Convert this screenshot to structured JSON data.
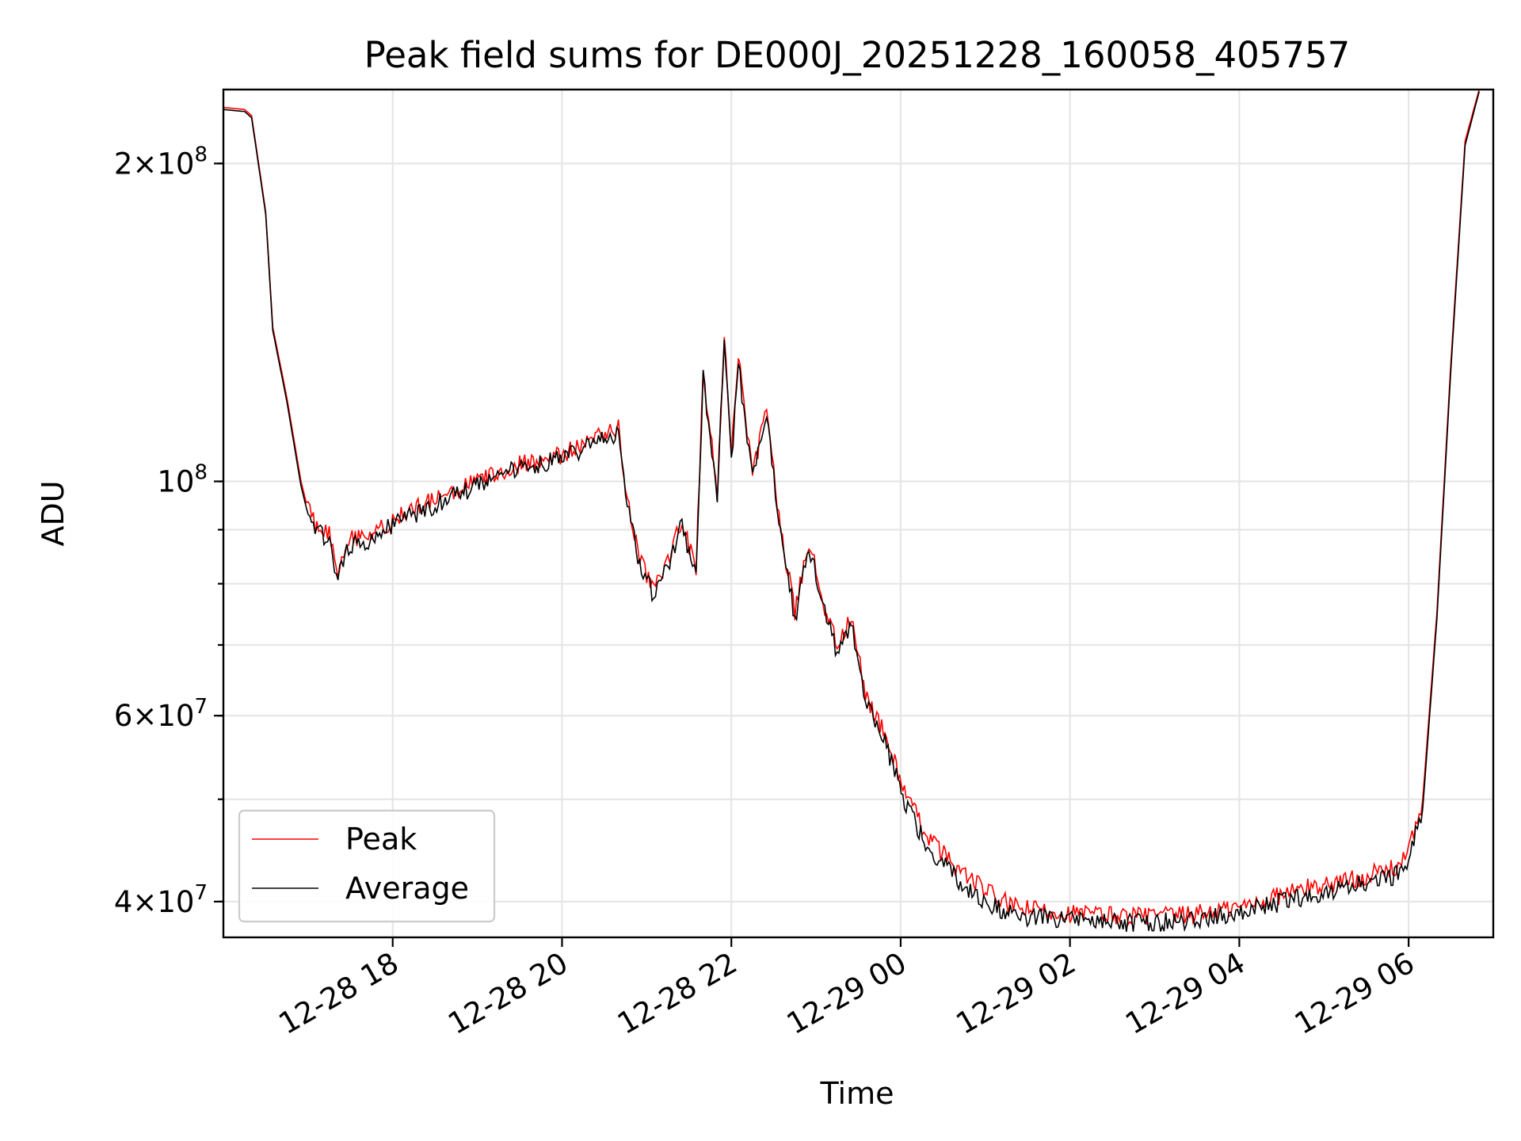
{
  "chart_data": {
    "type": "line",
    "title": "Peak field sums for DE000J_20251228_160058_405757",
    "xlabel": "Time",
    "ylabel": "ADU",
    "x_start": "2025-12-28 16:00",
    "x_end": "2025-12-29 07:00",
    "x_ticks": [
      "12-28 18",
      "12-28 20",
      "12-28 22",
      "12-29 00",
      "12-29 02",
      "12-29 04",
      "12-29 06"
    ],
    "y_scale": "log",
    "ylim": [
      37000000,
      235000000
    ],
    "y_ticks": [
      {
        "value": 200000000,
        "mantissa": "2",
        "exp": "8"
      },
      {
        "value": 100000000,
        "mantissa": "",
        "exp": "8"
      },
      {
        "value": 60000000,
        "mantissa": "6",
        "exp": "7"
      },
      {
        "value": 40000000,
        "mantissa": "4",
        "exp": "7"
      }
    ],
    "grid": true,
    "legend": {
      "position": "lower-left"
    },
    "series": [
      {
        "name": "Peak",
        "color": "#ff0000",
        "points": [
          [
            "2025-12-28 16:00",
            226000000
          ],
          [
            "2025-12-28 16:15",
            225000000
          ],
          [
            "2025-12-28 16:20",
            222000000
          ],
          [
            "2025-12-28 16:30",
            180000000
          ],
          [
            "2025-12-28 16:35",
            140000000
          ],
          [
            "2025-12-28 16:45",
            120000000
          ],
          [
            "2025-12-28 16:55",
            100000000
          ],
          [
            "2025-12-28 17:00",
            94000000
          ],
          [
            "2025-12-28 17:05",
            91000000
          ],
          [
            "2025-12-28 17:15",
            89000000
          ],
          [
            "2025-12-28 17:20",
            82000000
          ],
          [
            "2025-12-28 17:30",
            88000000
          ],
          [
            "2025-12-28 17:45",
            89000000
          ],
          [
            "2025-12-28 18:00",
            92000000
          ],
          [
            "2025-12-28 18:30",
            96000000
          ],
          [
            "2025-12-28 19:00",
            100000000
          ],
          [
            "2025-12-28 19:30",
            104000000
          ],
          [
            "2025-12-28 20:00",
            106000000
          ],
          [
            "2025-12-28 20:20",
            109000000
          ],
          [
            "2025-12-28 20:40",
            113000000
          ],
          [
            "2025-12-28 20:45",
            98000000
          ],
          [
            "2025-12-28 20:55",
            84000000
          ],
          [
            "2025-12-28 21:05",
            79000000
          ],
          [
            "2025-12-28 21:15",
            84000000
          ],
          [
            "2025-12-28 21:25",
            92000000
          ],
          [
            "2025-12-28 21:35",
            82000000
          ],
          [
            "2025-12-28 21:40",
            128000000
          ],
          [
            "2025-12-28 21:50",
            97000000
          ],
          [
            "2025-12-28 21:55",
            139000000
          ],
          [
            "2025-12-28 22:00",
            105000000
          ],
          [
            "2025-12-28 22:05",
            131000000
          ],
          [
            "2025-12-28 22:15",
            101000000
          ],
          [
            "2025-12-28 22:25",
            117000000
          ],
          [
            "2025-12-28 22:35",
            90000000
          ],
          [
            "2025-12-28 22:45",
            75000000
          ],
          [
            "2025-12-28 22:55",
            88000000
          ],
          [
            "2025-12-28 23:05",
            77000000
          ],
          [
            "2025-12-28 23:15",
            70000000
          ],
          [
            "2025-12-28 23:25",
            74000000
          ],
          [
            "2025-12-28 23:35",
            63000000
          ],
          [
            "2025-12-28 23:50",
            57000000
          ],
          [
            "2025-12-29 00:05",
            50000000
          ],
          [
            "2025-12-29 00:20",
            46000000
          ],
          [
            "2025-12-29 00:40",
            43000000
          ],
          [
            "2025-12-29 01:00",
            41000000
          ],
          [
            "2025-12-29 01:20",
            39500000
          ],
          [
            "2025-12-29 02:00",
            39000000
          ],
          [
            "2025-12-29 02:40",
            38800000
          ],
          [
            "2025-12-29 03:20",
            38800000
          ],
          [
            "2025-12-29 04:00",
            39500000
          ],
          [
            "2025-12-29 04:40",
            41000000
          ],
          [
            "2025-12-29 05:20",
            42000000
          ],
          [
            "2025-12-29 05:50",
            43000000
          ],
          [
            "2025-12-29 06:00",
            44500000
          ],
          [
            "2025-12-29 06:10",
            50000000
          ],
          [
            "2025-12-29 06:20",
            75000000
          ],
          [
            "2025-12-29 06:30",
            130000000
          ],
          [
            "2025-12-29 06:40",
            210000000
          ],
          [
            "2025-12-29 06:50",
            235000000
          ]
        ]
      },
      {
        "name": "Average",
        "color": "#000000",
        "points": [
          [
            "2025-12-28 16:00",
            225000000
          ],
          [
            "2025-12-28 16:15",
            224000000
          ],
          [
            "2025-12-28 16:20",
            221000000
          ],
          [
            "2025-12-28 16:30",
            179000000
          ],
          [
            "2025-12-28 16:35",
            139000000
          ],
          [
            "2025-12-28 16:45",
            119000000
          ],
          [
            "2025-12-28 16:55",
            99000000
          ],
          [
            "2025-12-28 17:00",
            93000000
          ],
          [
            "2025-12-28 17:05",
            90000000
          ],
          [
            "2025-12-28 17:15",
            88000000
          ],
          [
            "2025-12-28 17:20",
            81000000
          ],
          [
            "2025-12-28 17:30",
            87000000
          ],
          [
            "2025-12-28 17:45",
            88000000
          ],
          [
            "2025-12-28 18:00",
            91000000
          ],
          [
            "2025-12-28 18:30",
            95000000
          ],
          [
            "2025-12-28 19:00",
            99000000
          ],
          [
            "2025-12-28 19:30",
            103000000
          ],
          [
            "2025-12-28 20:00",
            105000000
          ],
          [
            "2025-12-28 20:20",
            108000000
          ],
          [
            "2025-12-28 20:40",
            111000000
          ],
          [
            "2025-12-28 20:45",
            97000000
          ],
          [
            "2025-12-28 20:55",
            83000000
          ],
          [
            "2025-12-28 21:05",
            78000000
          ],
          [
            "2025-12-28 21:15",
            83000000
          ],
          [
            "2025-12-28 21:25",
            91000000
          ],
          [
            "2025-12-28 21:35",
            81000000
          ],
          [
            "2025-12-28 21:40",
            126000000
          ],
          [
            "2025-12-28 21:50",
            96000000
          ],
          [
            "2025-12-28 21:55",
            137000000
          ],
          [
            "2025-12-28 22:00",
            104000000
          ],
          [
            "2025-12-28 22:05",
            129000000
          ],
          [
            "2025-12-28 22:15",
            100000000
          ],
          [
            "2025-12-28 22:25",
            115000000
          ],
          [
            "2025-12-28 22:35",
            89000000
          ],
          [
            "2025-12-28 22:45",
            74000000
          ],
          [
            "2025-12-28 22:55",
            87000000
          ],
          [
            "2025-12-28 23:05",
            76000000
          ],
          [
            "2025-12-28 23:15",
            69000000
          ],
          [
            "2025-12-28 23:25",
            73000000
          ],
          [
            "2025-12-28 23:35",
            62000000
          ],
          [
            "2025-12-28 23:50",
            56000000
          ],
          [
            "2025-12-29 00:05",
            49000000
          ],
          [
            "2025-12-29 00:20",
            45000000
          ],
          [
            "2025-12-29 00:40",
            42000000
          ],
          [
            "2025-12-29 01:00",
            40000000
          ],
          [
            "2025-12-29 01:20",
            38800000
          ],
          [
            "2025-12-29 02:00",
            38400000
          ],
          [
            "2025-12-29 02:40",
            38200000
          ],
          [
            "2025-12-29 03:20",
            38300000
          ],
          [
            "2025-12-29 04:00",
            39000000
          ],
          [
            "2025-12-29 04:40",
            40300000
          ],
          [
            "2025-12-29 05:20",
            41300000
          ],
          [
            "2025-12-29 05:50",
            42300000
          ],
          [
            "2025-12-29 06:00",
            44000000
          ],
          [
            "2025-12-29 06:10",
            49000000
          ],
          [
            "2025-12-29 06:20",
            74000000
          ],
          [
            "2025-12-29 06:30",
            128000000
          ],
          [
            "2025-12-29 06:40",
            208000000
          ],
          [
            "2025-12-29 06:50",
            234000000
          ]
        ]
      }
    ]
  }
}
